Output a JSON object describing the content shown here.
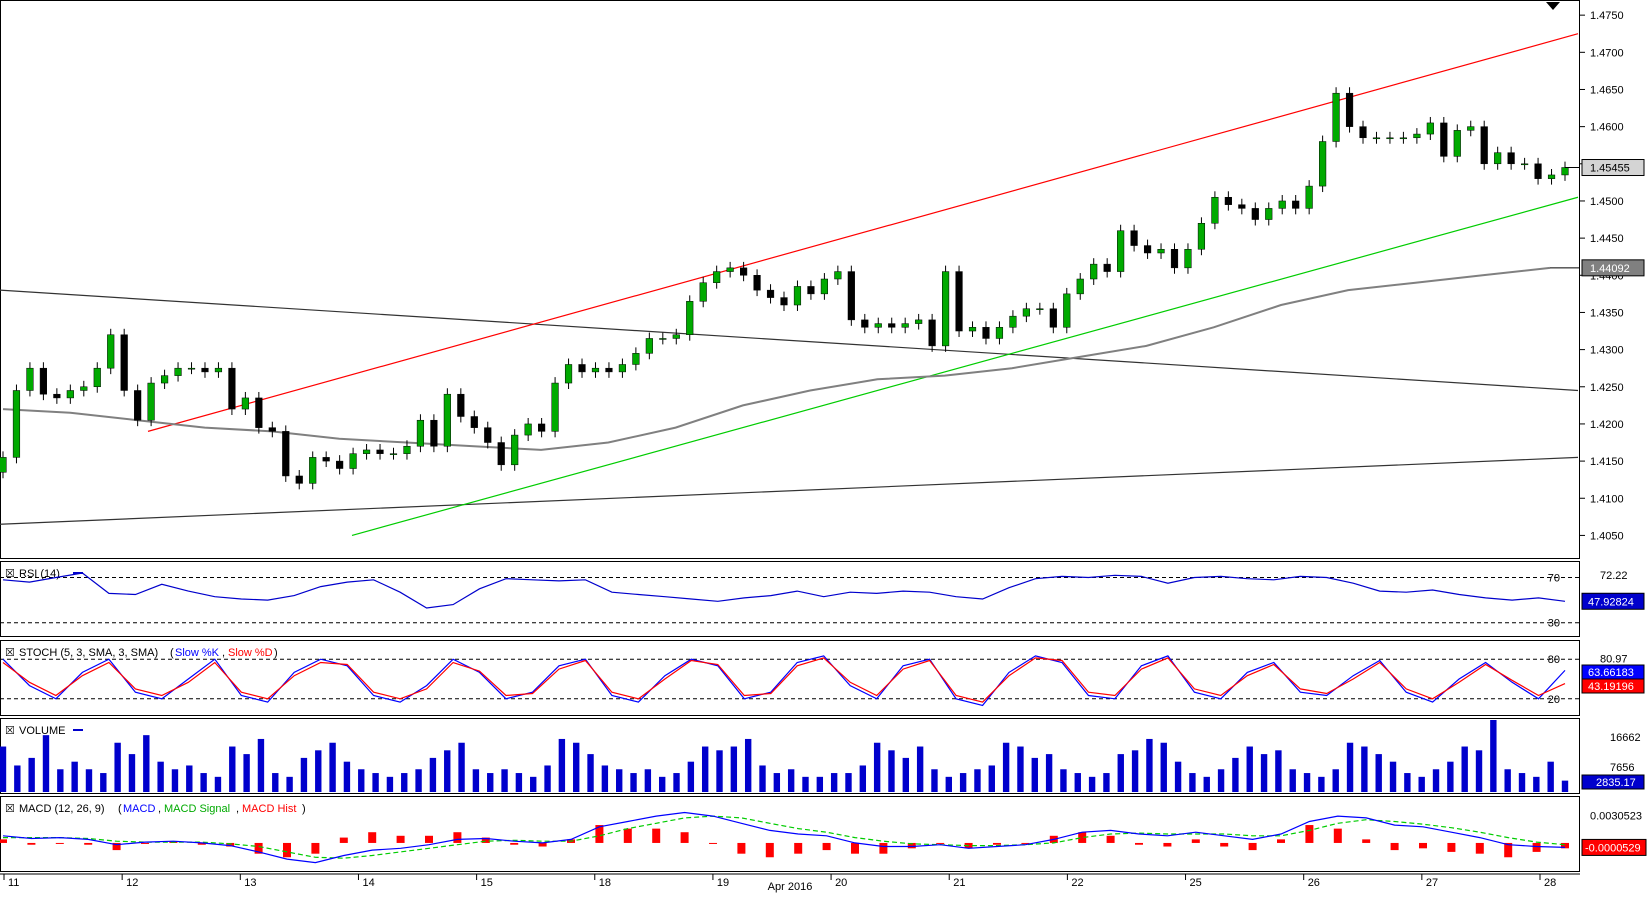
{
  "chart_data": [
    {
      "panel": "price",
      "type": "candlestick",
      "series": [
        {
          "name": "close",
          "values": [
            1.4155,
            1.4245,
            1.4275,
            1.424,
            1.4235,
            1.4245,
            1.425,
            1.4275,
            1.432,
            1.4245,
            1.4205,
            1.4255,
            1.4265,
            1.4275,
            1.4275,
            1.427,
            1.4275,
            1.422,
            1.4235,
            1.4195,
            1.419,
            1.413,
            1.412,
            1.4155,
            1.415,
            1.414,
            1.416,
            1.4165,
            1.416,
            1.416,
            1.417,
            1.4205,
            1.417,
            1.424,
            1.421,
            1.4195,
            1.4175,
            1.4145,
            1.4185,
            1.42,
            1.419,
            1.4255,
            1.428,
            1.427,
            1.4275,
            1.427,
            1.428,
            1.4295,
            1.4315,
            1.4315,
            1.432,
            1.4365,
            1.439,
            1.4405,
            1.441,
            1.44,
            1.438,
            1.437,
            1.436,
            1.4385,
            1.4375,
            1.4395,
            1.4405,
            1.434,
            1.433,
            1.4335,
            1.433,
            1.4335,
            1.434,
            1.4305,
            1.4405,
            1.4325,
            1.433,
            1.4315,
            1.433,
            1.4345,
            1.4355,
            1.4355,
            1.433,
            1.4375,
            1.4395,
            1.4415,
            1.4405,
            1.446,
            1.444,
            1.443,
            1.4435,
            1.441,
            1.4435,
            1.447,
            1.4505,
            1.4495,
            1.449,
            1.4475,
            1.449,
            1.45,
            1.449,
            1.452,
            1.458,
            1.4645,
            1.46,
            1.4585,
            1.4585,
            1.4585,
            1.4585,
            1.459,
            1.4605,
            1.456,
            1.4595,
            1.46,
            1.455,
            1.4565,
            1.455,
            1.455,
            1.453,
            1.4535,
            1.4545
          ]
        },
        {
          "name": "SMA",
          "values": [
            1.422,
            1.4215,
            1.4205,
            1.4195,
            1.419,
            1.418,
            1.4175,
            1.417,
            1.4165,
            1.4175,
            1.4195,
            1.4225,
            1.4245,
            1.426,
            1.4265,
            1.4275,
            1.429,
            1.4305,
            1.433,
            1.436,
            1.438,
            1.439,
            1.44,
            1.441
          ]
        }
      ],
      "channel_upper": {
        "start": 1.419,
        "end": 1.4725
      },
      "channel_lower": {
        "start": 1.405,
        "end": 1.4505
      },
      "trend_upper": {
        "start": 1.438,
        "end": 1.4245
      },
      "trend_lower": {
        "start": 1.4065,
        "end": 1.4155
      },
      "y_ticks": [
        "1.4750",
        "1.4700",
        "1.4650",
        "1.4600",
        "1.4550",
        "1.4500",
        "1.4450",
        "1.4400",
        "1.4350",
        "1.4300",
        "1.4250",
        "1.4200",
        "1.4150",
        "1.4100",
        "1.4050"
      ],
      "ylim": [
        1.4025,
        1.4765
      ],
      "last_price_label": "1.45455",
      "sma_label": "1.44092"
    },
    {
      "panel": "rsi",
      "type": "line",
      "title": "RSI (14)",
      "series": [
        {
          "name": "RSI",
          "values": [
            68,
            66,
            70,
            74,
            56,
            55,
            64,
            58,
            53,
            51,
            50,
            54,
            62,
            66,
            68,
            57,
            43,
            46,
            60,
            69,
            68,
            67,
            68,
            57,
            55,
            53,
            51,
            49,
            52,
            54,
            58,
            53,
            57,
            56,
            58,
            57,
            53,
            51,
            61,
            69,
            71,
            70,
            72,
            71,
            65,
            70,
            71,
            69,
            68,
            71,
            70,
            65,
            58,
            57,
            59,
            55,
            52,
            50,
            52,
            49
          ]
        }
      ],
      "ylim": [
        20,
        82
      ],
      "levels": [
        "70",
        "30"
      ],
      "right_labels": [
        "72.22",
        "47.92824"
      ]
    },
    {
      "panel": "stoch",
      "type": "line",
      "title": "STOCH (5, 3, SMA, 3, SMA)",
      "series": [
        {
          "name": "Slow %K",
          "values": [
            80,
            40,
            20,
            60,
            80,
            30,
            20,
            50,
            80,
            25,
            15,
            60,
            80,
            70,
            25,
            15,
            40,
            80,
            60,
            20,
            30,
            70,
            80,
            25,
            15,
            55,
            80,
            70,
            20,
            30,
            75,
            85,
            40,
            20,
            70,
            80,
            20,
            10,
            60,
            85,
            75,
            25,
            20,
            70,
            85,
            30,
            20,
            60,
            75,
            30,
            25,
            55,
            78,
            30,
            15,
            50,
            75,
            45,
            20,
            63
          ]
        },
        {
          "name": "Slow %D",
          "values": [
            75,
            45,
            25,
            55,
            75,
            35,
            25,
            45,
            75,
            30,
            20,
            55,
            75,
            72,
            30,
            20,
            35,
            75,
            62,
            25,
            28,
            65,
            78,
            30,
            20,
            50,
            78,
            72,
            25,
            28,
            70,
            82,
            45,
            25,
            65,
            78,
            25,
            15,
            55,
            82,
            78,
            30,
            25,
            65,
            82,
            35,
            25,
            55,
            72,
            35,
            28,
            50,
            75,
            35,
            20,
            45,
            72,
            48,
            25,
            43
          ]
        }
      ],
      "ylim": [
        0,
        100
      ],
      "levels": [
        "80",
        "20"
      ],
      "right_labels": [
        "80.97",
        "63.66183",
        "43.19196"
      ]
    },
    {
      "panel": "volume",
      "type": "bar",
      "title": "VOLUME",
      "series": [
        {
          "name": "VOLUME",
          "values": [
            12000,
            7000,
            9000,
            15000,
            6000,
            8000,
            6000,
            5000,
            13000,
            10000,
            15000,
            8000,
            6000,
            7000,
            5000,
            4000,
            12000,
            10000,
            14000,
            5000,
            4000,
            9000,
            11000,
            13000,
            8000,
            6000,
            5000,
            4000,
            5000,
            6000,
            9000,
            11000,
            13000,
            6000,
            5000,
            6000,
            5000,
            4000,
            7000,
            14000,
            13000,
            10000,
            7000,
            6000,
            5000,
            6000,
            4000,
            5000,
            8000,
            12000,
            11000,
            12000,
            14000,
            7000,
            5000,
            6000,
            4000,
            4000,
            5000,
            5000,
            7000,
            13000,
            11000,
            9000,
            12000,
            6000,
            4000,
            5000,
            6000,
            7000,
            13000,
            12000,
            9000,
            10000,
            6000,
            5000,
            4000,
            5000,
            10000,
            11000,
            14000,
            13000,
            8000,
            5000,
            4000,
            6000,
            9000,
            12000,
            10000,
            11000,
            6000,
            5000,
            4000,
            6000,
            13000,
            12000,
            10000,
            8000,
            5000,
            4000,
            6000,
            8000,
            12000,
            11000,
            19000,
            6000,
            5000,
            4000,
            8000,
            3000
          ]
        }
      ],
      "right_labels": [
        "16662",
        "7656",
        "2835.17"
      ]
    },
    {
      "panel": "macd",
      "type": "line",
      "title": "MACD (12, 26, 9)",
      "series": [
        {
          "name": "MACD",
          "values": [
            0.0008,
            0.0005,
            0.0006,
            0.0004,
            -0.0002,
            0.0001,
            0.0002,
            0.0,
            -0.0003,
            -0.001,
            -0.0018,
            -0.0022,
            -0.0014,
            -0.0008,
            -0.0006,
            -0.0002,
            0.0004,
            0.0005,
            0.0002,
            0.0,
            0.0004,
            0.0018,
            0.0024,
            0.003,
            0.0034,
            0.003,
            0.0022,
            0.0014,
            0.001,
            0.0008,
            0.0,
            -0.0004,
            -0.0004,
            -0.0002,
            -0.0006,
            -0.0004,
            -0.0002,
            0.0004,
            0.0012,
            0.0014,
            0.001,
            0.0008,
            0.0012,
            0.0008,
            0.0004,
            0.001,
            0.0024,
            0.003,
            0.0028,
            0.002,
            0.0018,
            0.0012,
            0.0006,
            -0.0002,
            -0.0004,
            -0.0005
          ]
        },
        {
          "name": "MACD Signal",
          "values": [
            0.0006,
            0.0006,
            0.0006,
            0.0005,
            0.0002,
            0.0001,
            0.0001,
            0.0001,
            -0.0001,
            -0.0004,
            -0.001,
            -0.0016,
            -0.0017,
            -0.0014,
            -0.001,
            -0.0006,
            -0.0002,
            0.0002,
            0.0003,
            0.0002,
            0.0002,
            0.0008,
            0.0016,
            0.0022,
            0.0028,
            0.003,
            0.0028,
            0.0022,
            0.0016,
            0.0012,
            0.0006,
            0.0002,
            -0.0001,
            -0.0002,
            -0.0003,
            -0.0003,
            -0.0002,
            0.0,
            0.0006,
            0.001,
            0.0011,
            0.001,
            0.001,
            0.001,
            0.0008,
            0.0008,
            0.0014,
            0.0022,
            0.0026,
            0.0024,
            0.0021,
            0.0017,
            0.0012,
            0.0006,
            0.0001,
            -0.0002
          ]
        }
      ],
      "ylim": [
        -0.0028,
        0.0048
      ],
      "right_labels": [
        "0.0030523",
        "-0.0000529"
      ]
    }
  ],
  "legend": {
    "slow_k": "Slow %K",
    "slow_d": "Slow %D",
    "macd_line": "MACD",
    "macd_signal": "MACD Signal",
    "macd_hist": "MACD Hist"
  },
  "x_axis": {
    "ticks": [
      "11",
      "12",
      "13",
      "14",
      "15",
      "18",
      "19",
      "20",
      "21",
      "22",
      "25",
      "26",
      "27",
      "28"
    ],
    "month_label": "Apr 2016"
  },
  "colors": {
    "up_candle": "#00aa00",
    "down_candle": "#000000",
    "channel_upper": "#ff0000",
    "channel_lower": "#00cc00",
    "trendline": "#333333",
    "sma": "#808080",
    "rsi": "#0000cc",
    "stoch_k": "#0000ff",
    "stoch_d": "#ff0000",
    "volume": "#0000cc",
    "macd": "#0000ff",
    "macd_signal": "#00cc00",
    "macd_hist": "#ff0000"
  }
}
